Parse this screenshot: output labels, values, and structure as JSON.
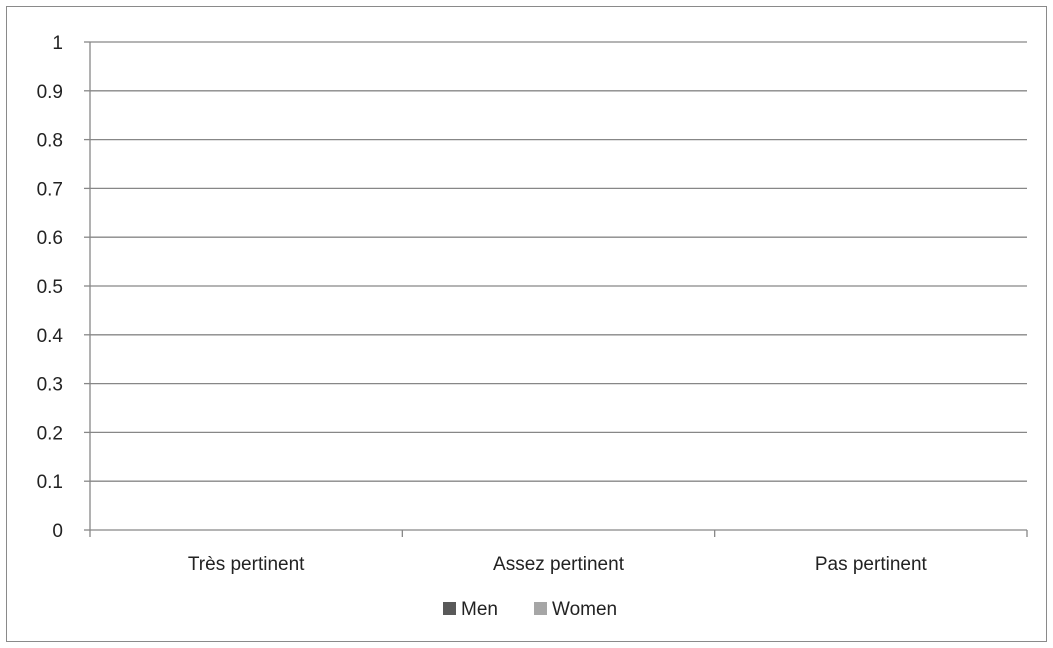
{
  "chart_data": {
    "type": "bar",
    "categories": [
      "Très pertinent",
      "Assez pertinent",
      "Pas pertinent"
    ],
    "series": [
      {
        "name": "Men",
        "values": [
          0,
          0,
          0
        ],
        "color": "#595959"
      },
      {
        "name": "Women",
        "values": [
          0,
          0,
          0
        ],
        "color": "#a6a6a6"
      }
    ],
    "y_ticks": [
      "0",
      "0.1",
      "0.2",
      "0.3",
      "0.4",
      "0.5",
      "0.6",
      "0.7",
      "0.8",
      "0.9",
      "1"
    ],
    "ylim": [
      0,
      1
    ],
    "grid": true,
    "legend_position": "bottom",
    "gridline_color": "#878787",
    "axis_color": "#878787"
  }
}
